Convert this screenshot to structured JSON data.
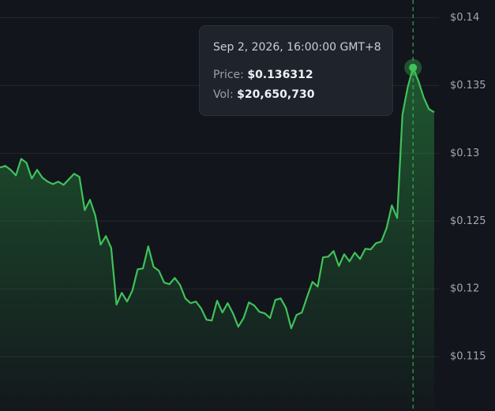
{
  "chart_data": {
    "type": "line",
    "values": [
      0.12895,
      0.12907,
      0.12878,
      0.12837,
      0.12959,
      0.1293,
      0.12814,
      0.12878,
      0.1282,
      0.12791,
      0.12773,
      0.12791,
      0.12767,
      0.12808,
      0.12849,
      0.12826,
      0.12581,
      0.12657,
      0.12541,
      0.12326,
      0.1239,
      0.12302,
      0.11884,
      0.11971,
      0.11907,
      0.11988,
      0.12145,
      0.12151,
      0.12314,
      0.12163,
      0.12134,
      0.12047,
      0.12035,
      0.12081,
      0.12029,
      0.1193,
      0.11895,
      0.11907,
      0.11855,
      0.11773,
      0.11767,
      0.11913,
      0.11826,
      0.11895,
      0.1182,
      0.11721,
      0.11785,
      0.11901,
      0.11878,
      0.11831,
      0.1182,
      0.11785,
      0.11919,
      0.1193,
      0.1186,
      0.11709,
      0.11808,
      0.11826,
      0.11942,
      0.12052,
      0.12017,
      0.12233,
      0.12238,
      0.12279,
      0.12169,
      0.12256,
      0.12203,
      0.12267,
      0.12221,
      0.12296,
      0.12291,
      0.12337,
      0.12349,
      0.12448,
      0.12616,
      0.12523,
      0.13285,
      0.13488,
      0.136312,
      0.13535,
      0.13413,
      0.13326,
      0.13302
    ],
    "color": "#3fc25a",
    "ylim": [
      0.111,
      0.1413
    ],
    "yticks": [
      {
        "value": 0.14,
        "label": "$0.14"
      },
      {
        "value": 0.135,
        "label": "$0.135"
      },
      {
        "value": 0.13,
        "label": "$0.13"
      },
      {
        "value": 0.125,
        "label": "$0.125"
      },
      {
        "value": 0.12,
        "label": "$0.12"
      },
      {
        "value": 0.115,
        "label": "$0.115"
      }
    ],
    "grid": true,
    "active_index": 78,
    "tooltip": {
      "date": "Sep 2, 2026, 16:00:00 GMT+8",
      "price_label": "Price:",
      "price": "$0.136312",
      "vol_label": "Vol:",
      "volume": "$20,650,730"
    }
  }
}
